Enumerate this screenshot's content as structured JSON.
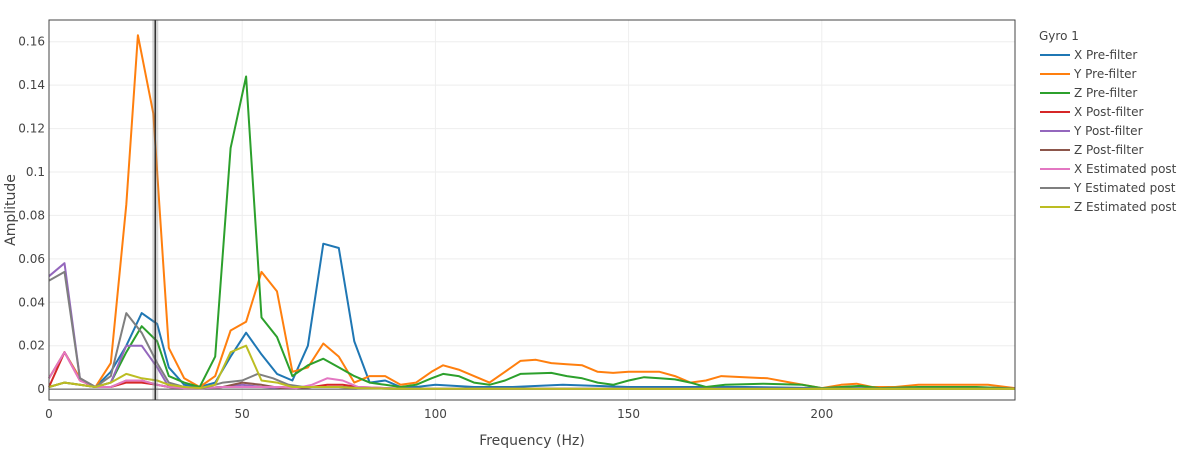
{
  "chart_data": {
    "type": "line",
    "title": "",
    "xlabel": "Frequency (Hz)",
    "ylabel": "Amplitude",
    "xlim": [
      0,
      250
    ],
    "ylim": [
      -0.005,
      0.17
    ],
    "x_ticks": [
      0,
      50,
      100,
      150,
      200
    ],
    "x_tick_labels": [
      "0",
      "50",
      "100",
      "150",
      "200"
    ],
    "y_ticks": [
      0,
      0.02,
      0.04,
      0.06,
      0.08,
      0.1,
      0.12,
      0.14,
      0.16
    ],
    "y_tick_labels": [
      "0",
      "0.02",
      "0.04",
      "0.06",
      "0.08",
      "0.1",
      "0.12",
      "0.14",
      "0.16"
    ],
    "grid": true,
    "legend_title": "Gyro 1",
    "legend_position": "right",
    "marker_line_x": 27.5,
    "series": [
      {
        "name": "X Pre-filter",
        "color": "#1f77b4",
        "points": [
          [
            0,
            0.005
          ],
          [
            4,
            0.017
          ],
          [
            8,
            0.005
          ],
          [
            12,
            0.001
          ],
          [
            16,
            0.008
          ],
          [
            20,
            0.02
          ],
          [
            24,
            0.035
          ],
          [
            28,
            0.03
          ],
          [
            31,
            0.01
          ],
          [
            35,
            0.002
          ],
          [
            39,
            0.001
          ],
          [
            43,
            0.003
          ],
          [
            47,
            0.015
          ],
          [
            51,
            0.026
          ],
          [
            55,
            0.016
          ],
          [
            59,
            0.007
          ],
          [
            63,
            0.004
          ],
          [
            67,
            0.02
          ],
          [
            71,
            0.067
          ],
          [
            75,
            0.065
          ],
          [
            79,
            0.022
          ],
          [
            83,
            0.003
          ],
          [
            87,
            0.004
          ],
          [
            91,
            0.001
          ],
          [
            95,
            0.001
          ],
          [
            100,
            0.002
          ],
          [
            110,
            0.001
          ],
          [
            120,
            0.001
          ],
          [
            133,
            0.002
          ],
          [
            150,
            0.001
          ],
          [
            165,
            0.001
          ],
          [
            180,
            0.001
          ],
          [
            200,
            0.0005
          ],
          [
            215,
            0.0005
          ],
          [
            230,
            0.0005
          ],
          [
            250,
            0.0003
          ]
        ]
      },
      {
        "name": "Y Pre-filter",
        "color": "#ff7f0e",
        "points": [
          [
            0,
            0.005
          ],
          [
            4,
            0.017
          ],
          [
            8,
            0.005
          ],
          [
            12,
            0.001
          ],
          [
            16,
            0.012
          ],
          [
            20,
            0.085
          ],
          [
            23,
            0.163
          ],
          [
            27,
            0.127
          ],
          [
            31,
            0.019
          ],
          [
            35,
            0.005
          ],
          [
            39,
            0.001
          ],
          [
            43,
            0.006
          ],
          [
            47,
            0.027
          ],
          [
            51,
            0.031
          ],
          [
            55,
            0.054
          ],
          [
            59,
            0.045
          ],
          [
            63,
            0.008
          ],
          [
            67,
            0.01
          ],
          [
            71,
            0.021
          ],
          [
            75,
            0.015
          ],
          [
            79,
            0.003
          ],
          [
            83,
            0.006
          ],
          [
            87,
            0.006
          ],
          [
            91,
            0.002
          ],
          [
            95,
            0.003
          ],
          [
            99,
            0.008
          ],
          [
            102,
            0.011
          ],
          [
            106,
            0.009
          ],
          [
            110,
            0.006
          ],
          [
            114,
            0.003
          ],
          [
            118,
            0.008
          ],
          [
            122,
            0.013
          ],
          [
            126,
            0.0135
          ],
          [
            130,
            0.012
          ],
          [
            134,
            0.0115
          ],
          [
            138,
            0.011
          ],
          [
            142,
            0.008
          ],
          [
            146,
            0.0075
          ],
          [
            150,
            0.008
          ],
          [
            158,
            0.008
          ],
          [
            162,
            0.006
          ],
          [
            166,
            0.003
          ],
          [
            170,
            0.004
          ],
          [
            174,
            0.006
          ],
          [
            180,
            0.0055
          ],
          [
            186,
            0.005
          ],
          [
            192,
            0.003
          ],
          [
            200,
            0.0005
          ],
          [
            205,
            0.002
          ],
          [
            209,
            0.0025
          ],
          [
            213,
            0.001
          ],
          [
            219,
            0.001
          ],
          [
            225,
            0.002
          ],
          [
            235,
            0.002
          ],
          [
            243,
            0.002
          ],
          [
            250,
            0.0005
          ]
        ]
      },
      {
        "name": "Z Pre-filter",
        "color": "#2ca02c",
        "points": [
          [
            0,
            0.001
          ],
          [
            4,
            0.003
          ],
          [
            8,
            0.002
          ],
          [
            12,
            0.001
          ],
          [
            16,
            0.003
          ],
          [
            20,
            0.017
          ],
          [
            24,
            0.029
          ],
          [
            28,
            0.022
          ],
          [
            31,
            0.006
          ],
          [
            35,
            0.003
          ],
          [
            39,
            0.001
          ],
          [
            43,
            0.015
          ],
          [
            47,
            0.111
          ],
          [
            51,
            0.144
          ],
          [
            55,
            0.033
          ],
          [
            59,
            0.024
          ],
          [
            63,
            0.006
          ],
          [
            67,
            0.011
          ],
          [
            71,
            0.014
          ],
          [
            75,
            0.01
          ],
          [
            79,
            0.006
          ],
          [
            83,
            0.003
          ],
          [
            87,
            0.002
          ],
          [
            91,
            0.001
          ],
          [
            95,
            0.002
          ],
          [
            99,
            0.005
          ],
          [
            102,
            0.007
          ],
          [
            106,
            0.006
          ],
          [
            110,
            0.003
          ],
          [
            114,
            0.002
          ],
          [
            118,
            0.004
          ],
          [
            122,
            0.007
          ],
          [
            130,
            0.0075
          ],
          [
            134,
            0.006
          ],
          [
            138,
            0.005
          ],
          [
            142,
            0.003
          ],
          [
            146,
            0.002
          ],
          [
            150,
            0.004
          ],
          [
            154,
            0.0055
          ],
          [
            158,
            0.005
          ],
          [
            162,
            0.0045
          ],
          [
            166,
            0.003
          ],
          [
            170,
            0.001
          ],
          [
            175,
            0.002
          ],
          [
            185,
            0.0025
          ],
          [
            195,
            0.002
          ],
          [
            200,
            0.0005
          ],
          [
            210,
            0.0015
          ],
          [
            215,
            0.0005
          ],
          [
            225,
            0.001
          ],
          [
            240,
            0.001
          ],
          [
            250,
            0.0003
          ]
        ]
      },
      {
        "name": "X Post-filter",
        "color": "#d62728",
        "points": [
          [
            0,
            0.001
          ],
          [
            4,
            0.017
          ],
          [
            8,
            0.004
          ],
          [
            12,
            0.001
          ],
          [
            16,
            0.001
          ],
          [
            20,
            0.003
          ],
          [
            24,
            0.003
          ],
          [
            28,
            0.002
          ],
          [
            31,
            0.001
          ],
          [
            35,
            0.0005
          ],
          [
            40,
            0.0005
          ],
          [
            45,
            0.001
          ],
          [
            50,
            0.001
          ],
          [
            55,
            0.001
          ],
          [
            60,
            0.001
          ],
          [
            64,
            0.0005
          ],
          [
            68,
            0.001
          ],
          [
            72,
            0.002
          ],
          [
            76,
            0.002
          ],
          [
            80,
            0.001
          ],
          [
            90,
            0.0003
          ],
          [
            110,
            0.0002
          ],
          [
            150,
            0.0001
          ],
          [
            200,
            0.0001
          ],
          [
            250,
            0.0001
          ]
        ]
      },
      {
        "name": "Y Post-filter",
        "color": "#9467bd",
        "points": [
          [
            0,
            0.052
          ],
          [
            4,
            0.058
          ],
          [
            8,
            0.005
          ],
          [
            12,
            0.001
          ],
          [
            16,
            0.003
          ],
          [
            20,
            0.02
          ],
          [
            24,
            0.02
          ],
          [
            28,
            0.01
          ],
          [
            31,
            0.001
          ],
          [
            35,
            0.0005
          ],
          [
            40,
            0.0005
          ],
          [
            45,
            0.001
          ],
          [
            50,
            0.002
          ],
          [
            55,
            0.001
          ],
          [
            60,
            0.0005
          ],
          [
            64,
            0.0005
          ],
          [
            68,
            0.001
          ],
          [
            72,
            0.001
          ],
          [
            76,
            0.001
          ],
          [
            80,
            0.0005
          ],
          [
            90,
            0.0002
          ],
          [
            110,
            0.0002
          ],
          [
            150,
            0.0001
          ],
          [
            200,
            0.0001
          ],
          [
            250,
            0.0001
          ]
        ]
      },
      {
        "name": "Z Post-filter",
        "color": "#8c564b",
        "points": [
          [
            0,
            0.001
          ],
          [
            4,
            0.003
          ],
          [
            8,
            0.002
          ],
          [
            12,
            0.001
          ],
          [
            16,
            0.001
          ],
          [
            20,
            0.004
          ],
          [
            24,
            0.004
          ],
          [
            28,
            0.002
          ],
          [
            31,
            0.001
          ],
          [
            35,
            0.0005
          ],
          [
            40,
            0.0005
          ],
          [
            45,
            0.001
          ],
          [
            50,
            0.003
          ],
          [
            55,
            0.002
          ],
          [
            60,
            0.0005
          ],
          [
            64,
            0.0005
          ],
          [
            68,
            0.001
          ],
          [
            72,
            0.001
          ],
          [
            76,
            0.001
          ],
          [
            80,
            0.0005
          ],
          [
            90,
            0.0002
          ],
          [
            110,
            0.0002
          ],
          [
            150,
            0.0001
          ],
          [
            200,
            0.0001
          ],
          [
            250,
            0.0001
          ]
        ]
      },
      {
        "name": "X Estimated post",
        "color": "#e377c2",
        "points": [
          [
            0,
            0.005
          ],
          [
            4,
            0.017
          ],
          [
            8,
            0.004
          ],
          [
            12,
            0.001
          ],
          [
            16,
            0.001
          ],
          [
            20,
            0.004
          ],
          [
            24,
            0.004
          ],
          [
            28,
            0.002
          ],
          [
            31,
            0.001
          ],
          [
            35,
            0.0005
          ],
          [
            40,
            0.0005
          ],
          [
            45,
            0.001
          ],
          [
            50,
            0.001
          ],
          [
            55,
            0.001
          ],
          [
            60,
            0.001
          ],
          [
            64,
            0.0005
          ],
          [
            68,
            0.002
          ],
          [
            72,
            0.005
          ],
          [
            76,
            0.004
          ],
          [
            80,
            0.001
          ],
          [
            90,
            0.0003
          ],
          [
            110,
            0.0002
          ],
          [
            150,
            0.0001
          ],
          [
            200,
            0.0001
          ],
          [
            250,
            0.0001
          ]
        ]
      },
      {
        "name": "Y Estimated post",
        "color": "#7f7f7f",
        "points": [
          [
            0,
            0.05
          ],
          [
            4,
            0.054
          ],
          [
            8,
            0.005
          ],
          [
            12,
            0.001
          ],
          [
            16,
            0.006
          ],
          [
            20,
            0.035
          ],
          [
            24,
            0.026
          ],
          [
            28,
            0.012
          ],
          [
            31,
            0.003
          ],
          [
            35,
            0.001
          ],
          [
            40,
            0.0005
          ],
          [
            45,
            0.003
          ],
          [
            50,
            0.004
          ],
          [
            54,
            0.007
          ],
          [
            58,
            0.005
          ],
          [
            62,
            0.002
          ],
          [
            66,
            0.001
          ],
          [
            70,
            0.001
          ],
          [
            75,
            0.001
          ],
          [
            80,
            0.0005
          ],
          [
            90,
            0.0002
          ],
          [
            110,
            0.0002
          ],
          [
            150,
            0.0001
          ],
          [
            200,
            0.0001
          ],
          [
            250,
            0.0001
          ]
        ]
      },
      {
        "name": "Z Estimated post",
        "color": "#bcbd22",
        "points": [
          [
            0,
            0.001
          ],
          [
            4,
            0.003
          ],
          [
            8,
            0.002
          ],
          [
            12,
            0.001
          ],
          [
            16,
            0.003
          ],
          [
            20,
            0.007
          ],
          [
            24,
            0.005
          ],
          [
            28,
            0.004
          ],
          [
            31,
            0.002
          ],
          [
            35,
            0.001
          ],
          [
            39,
            0.0005
          ],
          [
            43,
            0.002
          ],
          [
            47,
            0.017
          ],
          [
            51,
            0.02
          ],
          [
            55,
            0.004
          ],
          [
            59,
            0.003
          ],
          [
            63,
            0.001
          ],
          [
            68,
            0.001
          ],
          [
            75,
            0.001
          ],
          [
            80,
            0.0005
          ],
          [
            90,
            0.0002
          ],
          [
            110,
            0.0002
          ],
          [
            150,
            0.0001
          ],
          [
            200,
            0.0001
          ],
          [
            250,
            0.0001
          ]
        ]
      }
    ]
  }
}
